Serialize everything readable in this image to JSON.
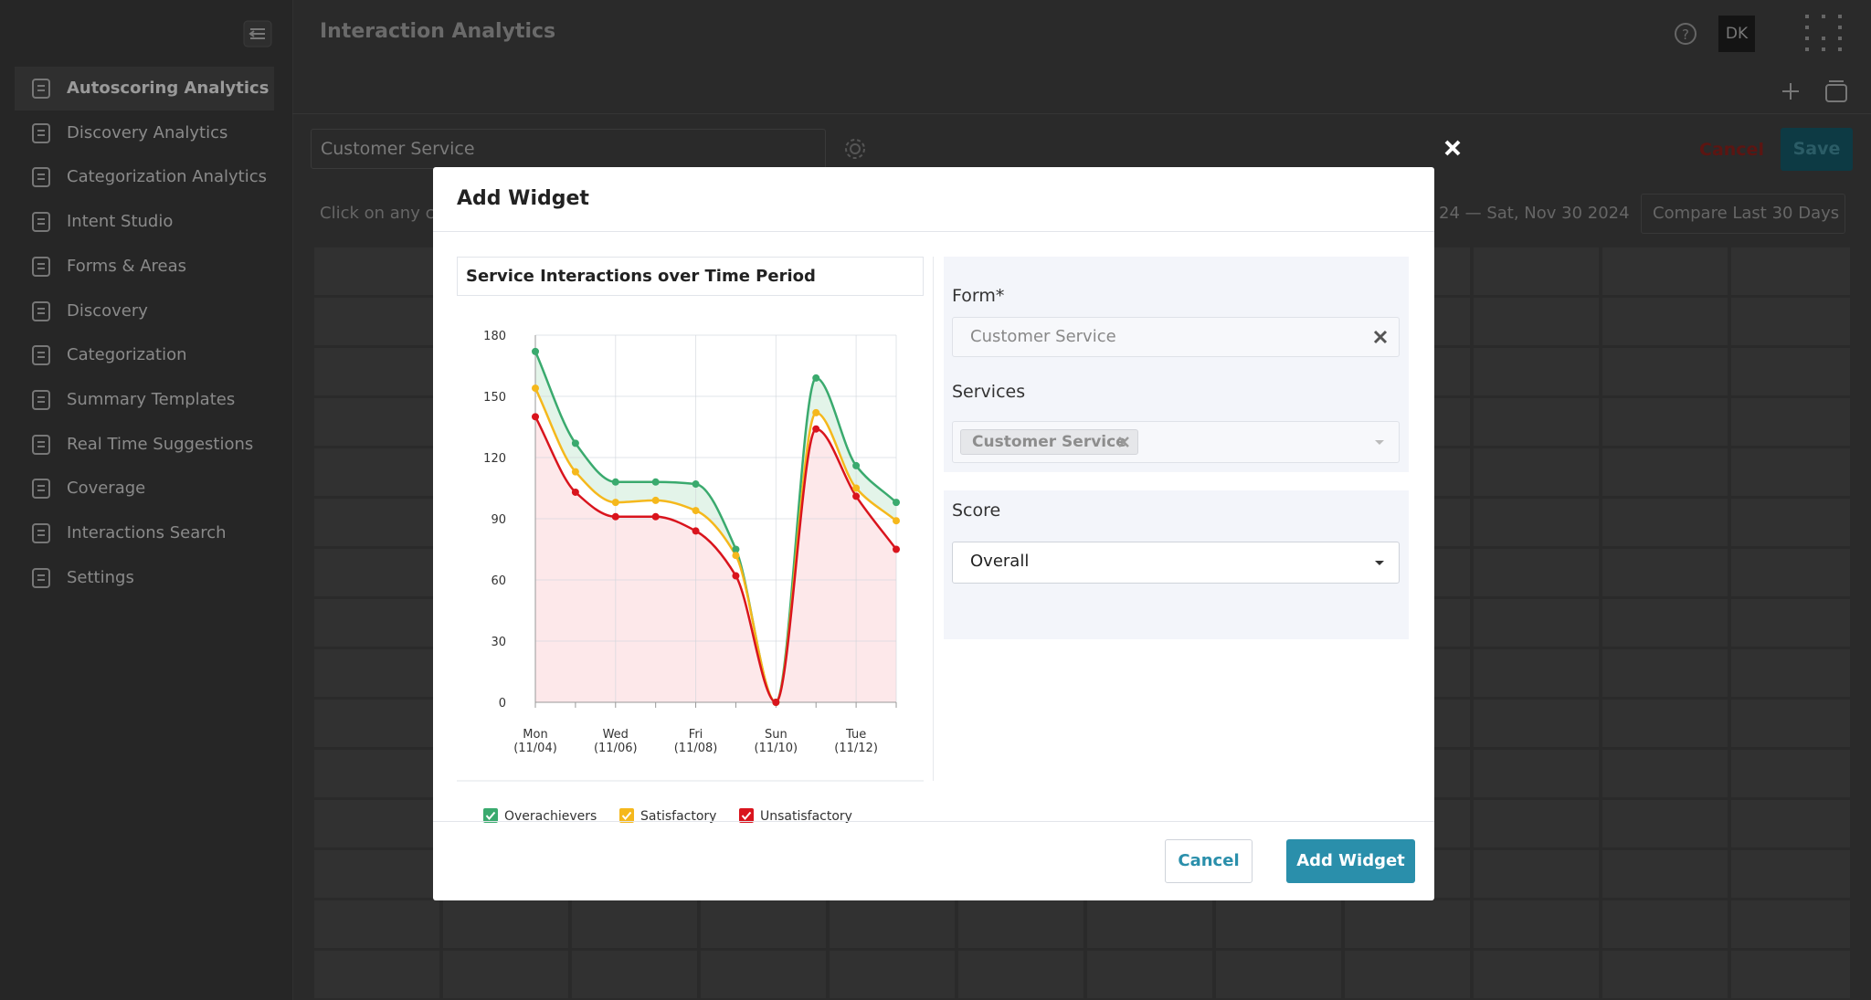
{
  "sidebar": {
    "items": [
      "Autoscoring Analytics",
      "Discovery Analytics",
      "Categorization Analytics",
      "Intent Studio",
      "Forms & Areas",
      "Discovery",
      "Categorization",
      "Summary Templates",
      "Real Time Suggestions",
      "Coverage",
      "Interactions Search",
      "Settings"
    ]
  },
  "header": {
    "title": "Interaction Analytics",
    "avatar": "DK"
  },
  "toolbar": {
    "dashboard_name": "Customer Service",
    "cancel": "Cancel",
    "save": "Save",
    "hint": "Click on any cel",
    "date_range": "24 — Sat, Nov 30 2024",
    "compare": "Compare Last 30 Days"
  },
  "modal": {
    "title": "Add Widget",
    "form_label": "Form*",
    "form_value": "Customer Service",
    "services_label": "Services",
    "services_chip": "Customer Service",
    "score_label": "Score",
    "score_value": "Overall",
    "cancel": "Cancel",
    "submit": "Add Widget"
  },
  "chart_data": {
    "type": "line",
    "title": "Service Interactions over Time Period",
    "categories": [
      "Mon (11/04)",
      null,
      "Wed (11/06)",
      null,
      "Fri (11/08)",
      null,
      "Sun (11/10)",
      null,
      "Tue (11/12)",
      null
    ],
    "series": [
      {
        "name": "Overachievers",
        "color": "#3aaa6e",
        "values": [
          172,
          127,
          108,
          108,
          107,
          75,
          0,
          159,
          116,
          98
        ]
      },
      {
        "name": "Satisfactory",
        "color": "#f5b81c",
        "values": [
          154,
          113,
          98,
          99,
          94,
          72,
          0,
          142,
          105,
          89
        ]
      },
      {
        "name": "Unsatisfactory",
        "color": "#d9141d",
        "values": [
          140,
          103,
          91,
          91,
          84,
          62,
          0,
          134,
          101,
          75
        ]
      }
    ],
    "ylim": [
      0,
      180
    ],
    "yticks": [
      0,
      30,
      60,
      90,
      120,
      150,
      180
    ],
    "grid": true,
    "legend": "bottom"
  }
}
